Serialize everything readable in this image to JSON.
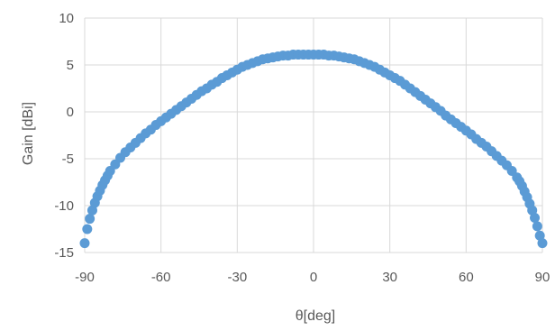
{
  "chart_data": {
    "type": "scatter",
    "title": "",
    "xlabel": "θ[deg]",
    "ylabel": "Gain [dBi]",
    "xlim": [
      -90,
      90
    ],
    "ylim": [
      -15,
      10
    ],
    "xticks": [
      -90,
      -60,
      -30,
      0,
      30,
      60,
      90
    ],
    "yticks": [
      -15,
      -10,
      -5,
      0,
      5,
      10
    ],
    "grid": true,
    "legend": "none",
    "marker_color": "#5b9bd5",
    "series": [
      {
        "x": [
          -90,
          -89,
          -88,
          -87,
          -86,
          -85,
          -84,
          -83,
          -82,
          -81,
          -80,
          -78,
          -76,
          -74,
          -72,
          -70,
          -68,
          -66,
          -64,
          -62,
          -60,
          -58,
          -56,
          -54,
          -52,
          -50,
          -48,
          -46,
          -44,
          -42,
          -40,
          -38,
          -36,
          -34,
          -32,
          -30,
          -28,
          -26,
          -24,
          -22,
          -20,
          -18,
          -16,
          -14,
          -12,
          -10,
          -8,
          -6,
          -4,
          -2,
          0,
          2,
          4,
          6,
          8,
          10,
          12,
          14,
          16,
          18,
          20,
          22,
          24,
          26,
          28,
          30,
          32,
          34,
          36,
          38,
          40,
          42,
          44,
          46,
          48,
          50,
          52,
          54,
          56,
          58,
          60,
          62,
          64,
          66,
          68,
          70,
          72,
          74,
          76,
          78,
          80,
          81,
          82,
          83,
          84,
          85,
          86,
          87,
          88,
          89,
          90
        ],
        "y": [
          -14.0,
          -12.5,
          -11.4,
          -10.5,
          -9.7,
          -9.0,
          -8.4,
          -7.8,
          -7.3,
          -6.8,
          -6.3,
          -5.6,
          -4.9,
          -4.3,
          -3.8,
          -3.3,
          -2.8,
          -2.3,
          -1.9,
          -1.4,
          -1.0,
          -0.6,
          -0.2,
          0.2,
          0.6,
          1.0,
          1.4,
          1.8,
          2.2,
          2.5,
          2.9,
          3.2,
          3.6,
          3.9,
          4.2,
          4.5,
          4.8,
          5.0,
          5.2,
          5.4,
          5.6,
          5.7,
          5.8,
          5.9,
          6.0,
          6.0,
          6.1,
          6.1,
          6.1,
          6.1,
          6.1,
          6.1,
          6.1,
          6.0,
          6.0,
          5.9,
          5.8,
          5.7,
          5.6,
          5.4,
          5.2,
          5.0,
          4.8,
          4.5,
          4.2,
          3.9,
          3.6,
          3.3,
          2.9,
          2.5,
          2.1,
          1.7,
          1.3,
          0.9,
          0.5,
          0.1,
          -0.4,
          -0.8,
          -1.2,
          -1.6,
          -2.0,
          -2.4,
          -2.9,
          -3.3,
          -3.7,
          -4.2,
          -4.7,
          -5.2,
          -5.7,
          -6.3,
          -7.0,
          -7.4,
          -7.9,
          -8.5,
          -9.1,
          -9.8,
          -10.5,
          -11.3,
          -12.2,
          -13.2,
          -14.0
        ]
      }
    ]
  }
}
